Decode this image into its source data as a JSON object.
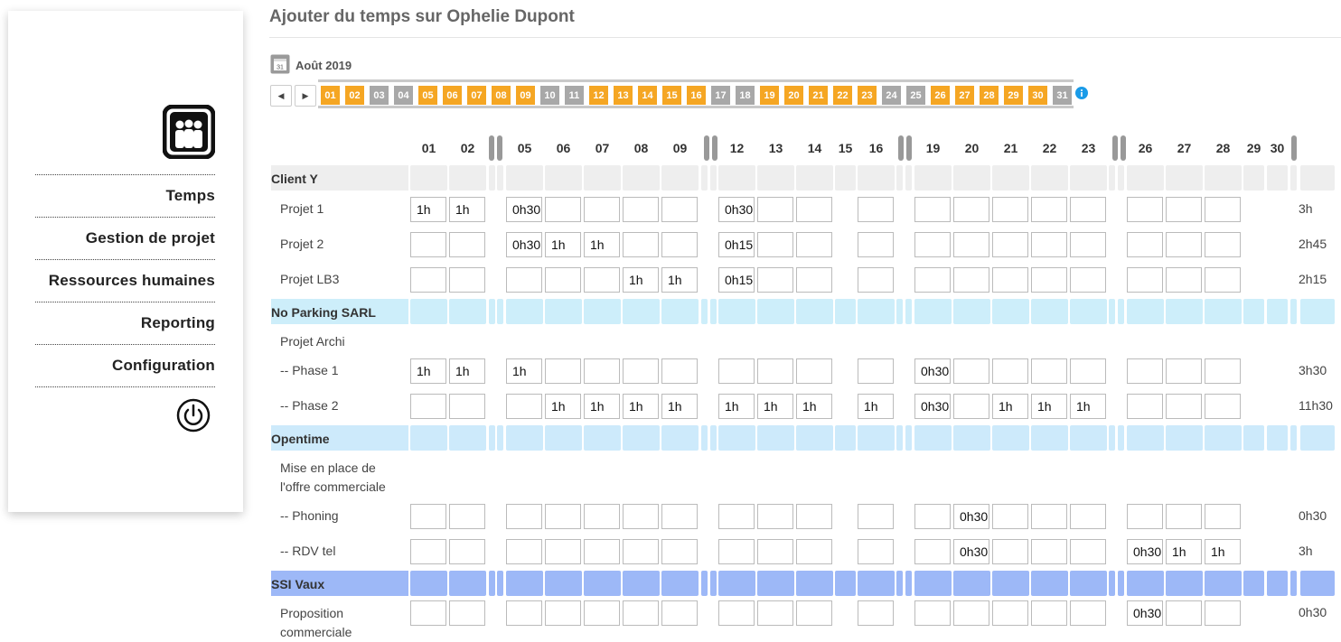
{
  "page": {
    "title": "Ajouter du temps sur Ophelie Dupont"
  },
  "sidebar": {
    "items": [
      {
        "label": "Temps"
      },
      {
        "label": "Gestion de projet"
      },
      {
        "label": "Ressources humaines"
      },
      {
        "label": "Reporting"
      },
      {
        "label": "Configuration"
      }
    ]
  },
  "calendar": {
    "month_label": "Août 2019",
    "prev_label": "◀",
    "next_label": "▶",
    "days": [
      {
        "label": "01",
        "state": "workday"
      },
      {
        "label": "02",
        "state": "workday"
      },
      {
        "label": "03",
        "state": "weekend"
      },
      {
        "label": "04",
        "state": "weekend"
      },
      {
        "label": "05",
        "state": "workday"
      },
      {
        "label": "06",
        "state": "workday"
      },
      {
        "label": "07",
        "state": "workday"
      },
      {
        "label": "08",
        "state": "workday"
      },
      {
        "label": "09",
        "state": "workday"
      },
      {
        "label": "10",
        "state": "weekend"
      },
      {
        "label": "11",
        "state": "weekend"
      },
      {
        "label": "12",
        "state": "workday"
      },
      {
        "label": "13",
        "state": "workday"
      },
      {
        "label": "14",
        "state": "workday"
      },
      {
        "label": "15",
        "state": "workday"
      },
      {
        "label": "16",
        "state": "workday"
      },
      {
        "label": "17",
        "state": "weekend"
      },
      {
        "label": "18",
        "state": "weekend"
      },
      {
        "label": "19",
        "state": "workday"
      },
      {
        "label": "20",
        "state": "workday"
      },
      {
        "label": "21",
        "state": "workday"
      },
      {
        "label": "22",
        "state": "workday"
      },
      {
        "label": "23",
        "state": "workday"
      },
      {
        "label": "24",
        "state": "weekend"
      },
      {
        "label": "25",
        "state": "weekend"
      },
      {
        "label": "26",
        "state": "workday"
      },
      {
        "label": "27",
        "state": "workday"
      },
      {
        "label": "28",
        "state": "workday"
      },
      {
        "label": "29",
        "state": "workday"
      },
      {
        "label": "30",
        "state": "workday"
      },
      {
        "label": "31",
        "state": "weekend"
      }
    ],
    "colors": {
      "workday": "#f5a623",
      "weekend": "#a8a8a8"
    }
  },
  "grid": {
    "columns": [
      "01",
      "02",
      "05",
      "06",
      "07",
      "08",
      "09",
      "12",
      "13",
      "14",
      "15",
      "16",
      "19",
      "20",
      "21",
      "22",
      "23",
      "26",
      "27",
      "28",
      "29",
      "30"
    ],
    "groups": [
      {
        "label": "Client Y",
        "color": "#eeeeee",
        "rows": [
          {
            "label": "Projet 1",
            "values": [
              "1h",
              "1h",
              "0h30",
              "",
              "",
              "",
              "",
              "0h30",
              "",
              "",
              "-",
              "",
              "",
              "",
              "",
              "",
              "",
              "",
              "",
              "",
              "-",
              "-"
            ],
            "total": "3h"
          },
          {
            "label": "Projet 2",
            "values": [
              "",
              "",
              "0h30",
              "1h",
              "1h",
              "",
              "",
              "0h15",
              "",
              "",
              "-",
              "",
              "",
              "",
              "",
              "",
              "",
              "",
              "",
              "",
              "-",
              "-"
            ],
            "total": "2h45"
          },
          {
            "label": "Projet LB3",
            "values": [
              "",
              "",
              "",
              "",
              "",
              "1h",
              "1h",
              "0h15",
              "",
              "",
              "-",
              "",
              "",
              "",
              "",
              "",
              "",
              "",
              "",
              "",
              "-",
              "-"
            ],
            "total": "2h15"
          }
        ]
      },
      {
        "label": "No Parking SARL",
        "color": "#cdeefa",
        "rows": [
          {
            "label": "Projet Archi",
            "values": null,
            "total": ""
          },
          {
            "label": "-- Phase 1",
            "values": [
              "1h",
              "1h",
              "1h",
              "",
              "",
              "",
              "",
              "",
              "",
              "",
              "-",
              "",
              "0h30",
              "",
              "",
              "",
              "",
              "",
              "",
              "",
              "-",
              "-"
            ],
            "total": "3h30"
          },
          {
            "label": "-- Phase 2",
            "values": [
              "",
              "",
              "",
              "1h",
              "1h",
              "1h",
              "1h",
              "1h",
              "1h",
              "1h",
              "-",
              "1h",
              "0h30",
              "",
              "1h",
              "1h",
              "1h",
              "",
              "",
              "",
              "-",
              "-"
            ],
            "total": "11h30"
          }
        ]
      },
      {
        "label": "Opentime",
        "color": "#cdeafb",
        "rows": [
          {
            "label": "Mise en place de l'offre commerciale",
            "values": null,
            "total": ""
          },
          {
            "label": "-- Phoning",
            "values": [
              "",
              "",
              "",
              "",
              "",
              "",
              "",
              "",
              "",
              "",
              "-",
              "",
              "",
              "0h30",
              "",
              "",
              "",
              "",
              "",
              "",
              "-",
              "-"
            ],
            "total": "0h30"
          },
          {
            "label": "-- RDV tel",
            "values": [
              "",
              "",
              "",
              "",
              "",
              "",
              "",
              "",
              "",
              "",
              "-",
              "",
              "",
              "0h30",
              "",
              "",
              "",
              "0h30",
              "1h",
              "1h",
              "-",
              "-"
            ],
            "total": "3h"
          }
        ]
      },
      {
        "label": "SSI Vaux",
        "color": "#9db8f7",
        "rows": [
          {
            "label": "Proposition commerciale",
            "values": [
              "",
              "",
              "",
              "",
              "",
              "",
              "",
              "",
              "",
              "",
              "-",
              "",
              "",
              "",
              "",
              "",
              "",
              "0h30",
              "",
              "",
              "-",
              "-"
            ],
            "total": "0h30"
          }
        ]
      }
    ]
  }
}
